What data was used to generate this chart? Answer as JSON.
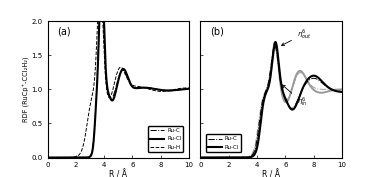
{
  "panel_a_label": "(a)",
  "panel_b_label": "(b)",
  "xlabel": "R / Å",
  "ylabel": "RDF (RuCp⁺-CCl₂H₂)",
  "xlim": [
    0,
    10
  ],
  "ylim": [
    0.0,
    2.0
  ],
  "yticks": [
    0.0,
    0.5,
    1.0,
    1.5,
    2.0
  ],
  "xticks": [
    0,
    2,
    4,
    6,
    8,
    10
  ],
  "legend_a": [
    "Ru-C",
    "Ru-Cl",
    "Ru-H"
  ],
  "legend_b": [
    "Ru-C",
    "Ru-Cl"
  ],
  "bg_color": "#ffffff",
  "line_color_dark": "#000000",
  "line_color_gray": "#888888"
}
